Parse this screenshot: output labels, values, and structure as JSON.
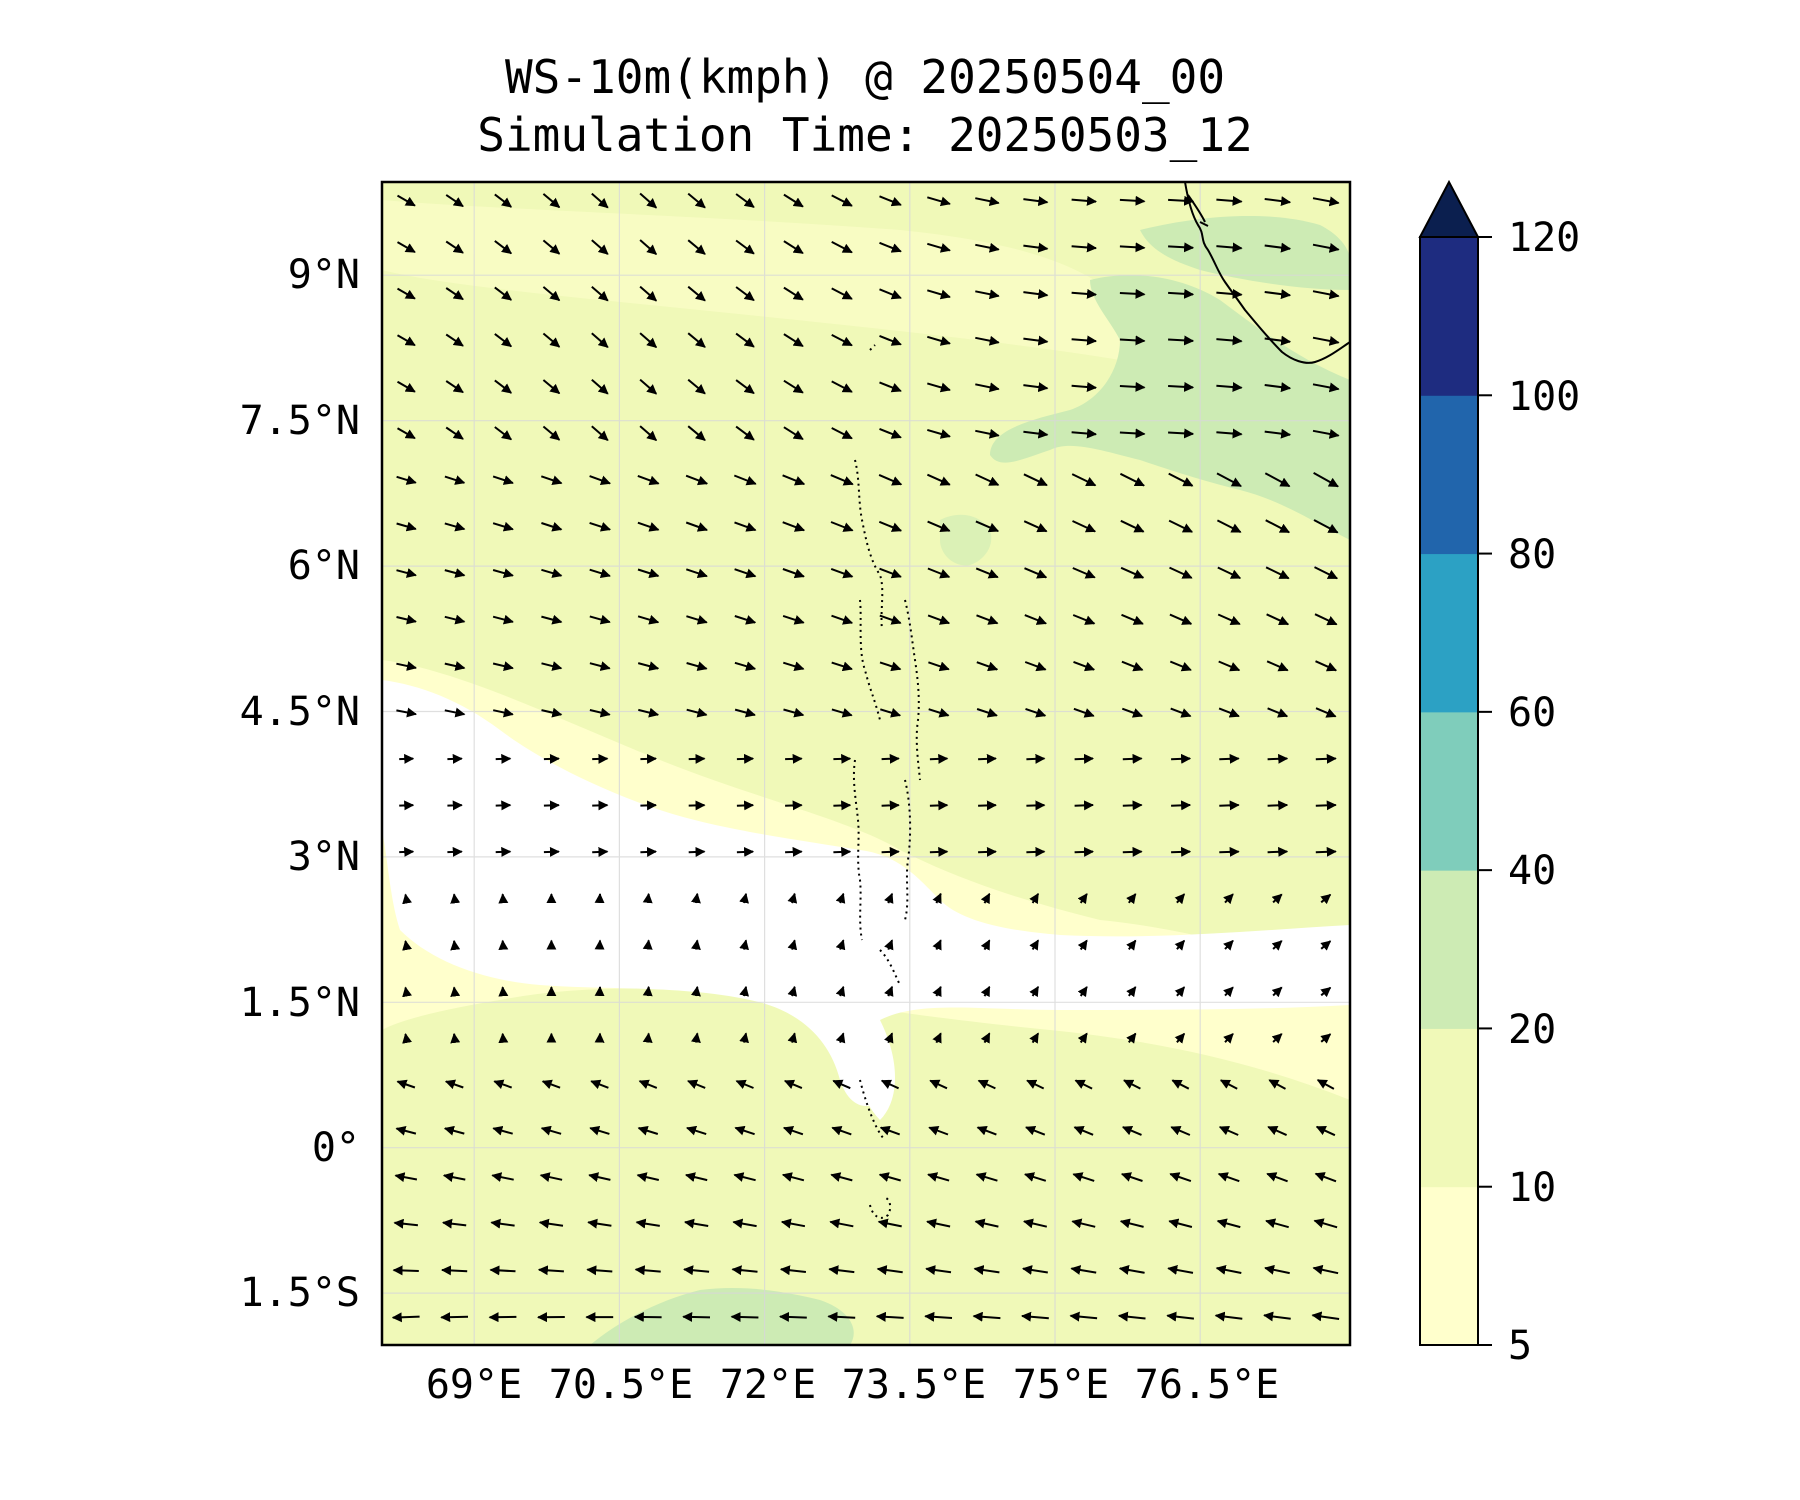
{
  "title": "WS-10m(kmph) @ 20250504_00",
  "subtitle": "Simulation Time: 20250503_12",
  "map": {
    "lon_range": [
      67.5,
      77.5
    ],
    "lat_range": [
      -2.0,
      10.0
    ],
    "lon_ticks": [
      {
        "value": 69.0,
        "label": "69°E"
      },
      {
        "value": 70.5,
        "label": "70.5°E"
      },
      {
        "value": 72.0,
        "label": "72°E"
      },
      {
        "value": 73.5,
        "label": "73.5°E"
      },
      {
        "value": 75.0,
        "label": "75°E"
      },
      {
        "value": 76.5,
        "label": "76.5°E"
      }
    ],
    "lat_ticks": [
      {
        "value": 9.0,
        "label": "9°N"
      },
      {
        "value": 7.5,
        "label": "7.5°N"
      },
      {
        "value": 6.0,
        "label": "6°N"
      },
      {
        "value": 4.5,
        "label": "4.5°N"
      },
      {
        "value": 3.0,
        "label": "3°N"
      },
      {
        "value": 1.5,
        "label": "1.5°N"
      },
      {
        "value": 0.0,
        "label": "0°"
      },
      {
        "value": -1.5,
        "label": "1.5°S"
      }
    ],
    "gridlines": true,
    "coastline_color": "#000000",
    "vector_color": "#000000"
  },
  "colorbar": {
    "levels": [
      "5",
      "10",
      "20",
      "40",
      "60",
      "80",
      "100",
      "120"
    ],
    "colors": [
      "#ffffcc",
      "#f0f9b8",
      "#cdebb4",
      "#7fcdbb",
      "#2ca1c4",
      "#2165ac",
      "#1e2c80"
    ],
    "extend_color": "#0b1f4f",
    "extend": "max"
  }
}
